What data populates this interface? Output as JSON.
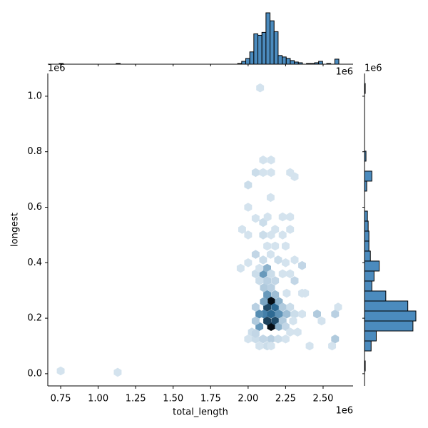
{
  "chart_data": [
    {
      "type": "hexbin",
      "xlabel": "total_length",
      "ylabel": "longest",
      "x_offset": "1e6",
      "y_offset": "1e6",
      "xlim": [
        0.664,
        2.7
      ],
      "ylim": [
        -0.044,
        1.082
      ],
      "xticks": [
        0.75,
        {
          "value": 1,
          "label": "1.00"
        },
        1.25,
        {
          "value": 1.5,
          "label": "1.50"
        },
        1.75,
        {
          "value": 2,
          "label": "2.00"
        },
        2.25,
        {
          "value": 2.5,
          "label": "2.50"
        }
      ],
      "yticks": [
        {
          "value": 0,
          "label": "0.0"
        },
        0.2,
        0.4,
        0.6,
        0.8,
        {
          "value": 1,
          "label": "1.0"
        }
      ],
      "colormap": [
        "#e6eff7",
        "#3274a1",
        "#050d14"
      ],
      "x": [
        2.153,
        2.153,
        2.127,
        2.18,
        2.127,
        2.18,
        2.105,
        2.205,
        2.075,
        2.205,
        2.105,
        2.205,
        2.075,
        2.153,
        2.127,
        2.18,
        2.05,
        2.257,
        2.23,
        2.23,
        2.105,
        2.153,
        2.05,
        2.25,
        2.1,
        2.127,
        2.127,
        2.075,
        2.18,
        2.05,
        2.075,
        2.153,
        2.23,
        2.28,
        2.31,
        2.257,
        2.28,
        2.31,
        2.36,
        2.36,
        2.46,
        2.58,
        2.58,
        2.6,
        2.49,
        2.41,
        2.56,
        2.0,
        2.05,
        2.1,
        2.153,
        2.2,
        2.25,
        2.075,
        2.127,
        2.025,
        2.05,
        2.28,
        2.33,
        2.153,
        2.3,
        1.95,
        2.0,
        2.05,
        2.1,
        2.15,
        2.2,
        2.25,
        2.0,
        2.1,
        2.127,
        2.153,
        2.23,
        2.28,
        2.1,
        2.18,
        2.05,
        2.13,
        2.23,
        2.28,
        2.0,
        2.15,
        2.0,
        2.05,
        2.1,
        2.153,
        2.28,
        2.31,
        2.1,
        2.153,
        1.96,
        2.25,
        2.31,
        2.36,
        2.38,
        2.18,
        0.75,
        1.13,
        2.08
      ],
      "y": [
        0.262,
        0.17,
        0.19,
        0.19,
        0.24,
        0.24,
        0.215,
        0.215,
        0.17,
        0.17,
        0.26,
        0.26,
        0.215,
        0.215,
        0.285,
        0.285,
        0.19,
        0.215,
        0.19,
        0.24,
        0.31,
        0.31,
        0.24,
        0.17,
        0.36,
        0.38,
        0.335,
        0.335,
        0.335,
        0.36,
        0.38,
        0.36,
        0.36,
        0.36,
        0.335,
        0.29,
        0.24,
        0.215,
        0.215,
        0.29,
        0.215,
        0.215,
        0.125,
        0.24,
        0.19,
        0.1,
        0.1,
        0.125,
        0.125,
        0.125,
        0.125,
        0.125,
        0.125,
        0.1,
        0.1,
        0.15,
        0.145,
        0.15,
        0.15,
        0.1,
        0.19,
        0.38,
        0.4,
        0.43,
        0.41,
        0.43,
        0.41,
        0.4,
        0.5,
        0.5,
        0.46,
        0.5,
        0.5,
        0.52,
        0.545,
        0.52,
        0.56,
        0.565,
        0.565,
        0.565,
        0.6,
        0.635,
        0.68,
        0.725,
        0.725,
        0.725,
        0.725,
        0.71,
        0.77,
        0.77,
        0.52,
        0.46,
        0.41,
        0.39,
        0.29,
        0.46,
        0.01,
        0.005,
        1.03
      ],
      "counts": [
        40,
        40,
        30,
        28,
        28,
        22,
        18,
        15,
        14,
        10,
        12,
        10,
        16,
        22,
        14,
        8,
        6,
        8,
        6,
        6,
        6,
        5,
        5,
        4,
        14,
        10,
        5,
        3,
        4,
        3,
        2,
        3,
        2,
        2,
        4,
        2,
        3,
        3,
        2,
        2,
        6,
        5,
        6,
        2,
        2,
        2,
        2,
        2,
        3,
        4,
        5,
        3,
        2,
        2,
        3,
        3,
        4,
        2,
        2,
        2,
        2,
        2,
        2,
        4,
        3,
        2,
        3,
        2,
        2,
        3,
        2,
        2,
        2,
        2,
        3,
        2,
        2,
        2,
        2,
        2,
        2,
        2,
        3,
        3,
        2,
        2,
        2,
        2,
        2,
        2,
        2,
        2,
        2,
        4,
        2,
        2,
        2,
        2,
        2
      ]
    },
    {
      "type": "histogram",
      "orientation": "vertical",
      "offset": "1e6",
      "color": "#4b8bbe",
      "bins": [
        0.74,
        0.767,
        1.12,
        1.147,
        1.93,
        1.957,
        1.984,
        2.011,
        2.038,
        2.065,
        2.092,
        2.119,
        2.146,
        2.173,
        2.2,
        2.227,
        2.254,
        2.281,
        2.308,
        2.335,
        2.362,
        2.389,
        2.416,
        2.443,
        2.47,
        2.497,
        2.524,
        2.551,
        2.578,
        2.605
      ],
      "counts": [
        1,
        0,
        1,
        0,
        1,
        4,
        8,
        17,
        42,
        40,
        44,
        71,
        60,
        45,
        12,
        10,
        8,
        5,
        3,
        2,
        0,
        1,
        1,
        2,
        4,
        0,
        1,
        0,
        7
      ]
    },
    {
      "type": "histogram",
      "orientation": "horizontal",
      "offset": "1e6",
      "color": "#4b8bbe",
      "bins": [
        0.01,
        0.046,
        0.082,
        0.118,
        0.154,
        0.19,
        0.226,
        0.262,
        0.298,
        0.334,
        0.37,
        0.406,
        0.442,
        0.478,
        0.514,
        0.55,
        0.586,
        0.622,
        0.658,
        0.694,
        0.73,
        0.766,
        0.802,
        1.01,
        1.046
      ],
      "counts": [
        1,
        0,
        9,
        16,
        66,
        70,
        59,
        29,
        10,
        13,
        20,
        8,
        6,
        6,
        5,
        4,
        0,
        0,
        3,
        10,
        0,
        2,
        0,
        1
      ]
    }
  ]
}
